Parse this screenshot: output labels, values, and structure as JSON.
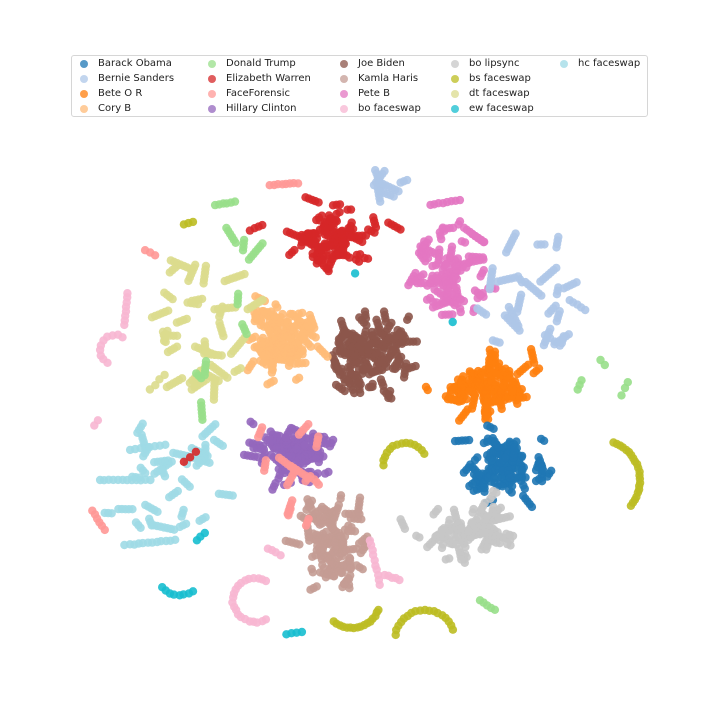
{
  "chart_data": {
    "type": "scatter",
    "title": "",
    "xlabel": "",
    "ylabel": "",
    "axes_visible": false,
    "legend_placement": "top",
    "legend_columns": 5,
    "series": [
      {
        "name": "Barack Obama",
        "color": "#1f77b4"
      },
      {
        "name": "Bernie Sanders",
        "color": "#aec7e8"
      },
      {
        "name": "Bete O R",
        "color": "#ff7f0e"
      },
      {
        "name": "Cory B",
        "color": "#ffbb78"
      },
      {
        "name": "Donald Trump",
        "color": "#98df8a"
      },
      {
        "name": "Elizabeth Warren",
        "color": "#d62728"
      },
      {
        "name": "FaceForensic",
        "color": "#ff9896"
      },
      {
        "name": "Hillary Clinton",
        "color": "#9467bd"
      },
      {
        "name": "Joe Biden",
        "color": "#8c564b"
      },
      {
        "name": "Kamla Haris",
        "color": "#c49c94"
      },
      {
        "name": "Pete B",
        "color": "#e377c2"
      },
      {
        "name": "bo faceswap",
        "color": "#f7b6d2"
      },
      {
        "name": "bo lipsync",
        "color": "#c7c7c7"
      },
      {
        "name": "bs faceswap",
        "color": "#bcbd22"
      },
      {
        "name": "dt faceswap",
        "color": "#dbdb8d"
      },
      {
        "name": "ew faceswap",
        "color": "#17becf"
      },
      {
        "name": "hc faceswap",
        "color": "#9edae5"
      }
    ]
  }
}
